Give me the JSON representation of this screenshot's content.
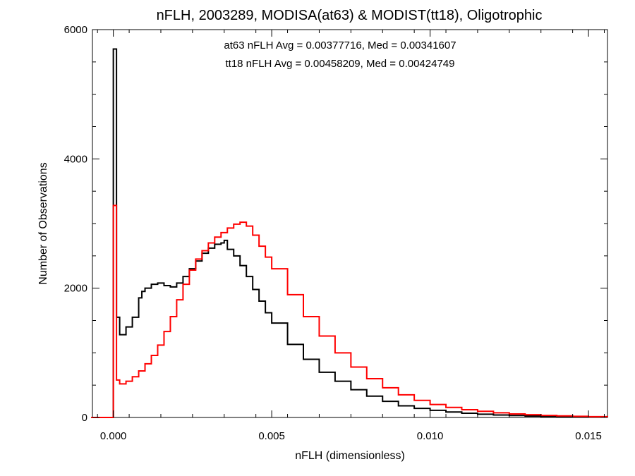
{
  "chart_data": {
    "type": "line",
    "title": "nFLH, 2003289, MODISA(at63) & MODIST(tt18), Oligotrophic",
    "xlabel": "nFLH (dimensionless)",
    "ylabel": "Number of Observations",
    "xlim": [
      -0.00066,
      0.0156
    ],
    "ylim": [
      0,
      6000
    ],
    "x_ticks": [
      0.0,
      0.005,
      0.01,
      0.015
    ],
    "x_tick_labels": [
      "0.000",
      "0.005",
      "0.010",
      "0.015"
    ],
    "y_ticks": [
      0,
      2000,
      4000,
      6000
    ],
    "y_tick_labels": [
      "0",
      "2000",
      "4000",
      "6000"
    ],
    "grid": false,
    "step": true,
    "annotations": [
      {
        "text": "at63 nFLH Avg = 0.00377716, Med = 0.00341607",
        "color": "#000000"
      },
      {
        "text": "tt18 nFLH Avg = 0.00458209, Med = 0.00424749",
        "color": "#ff0000"
      }
    ],
    "series": [
      {
        "color": "#000000",
        "x": [
          -0.0007,
          -5e-05,
          0,
          0.0001,
          0.0002,
          0.0004,
          0.0006,
          0.0008,
          0.0009,
          0.001,
          0.0012,
          0.0014,
          0.0016,
          0.0018,
          0.002,
          0.0022,
          0.0024,
          0.0026,
          0.0028,
          0.003,
          0.0032,
          0.0034,
          0.0035,
          0.0036,
          0.0038,
          0.004,
          0.0042,
          0.0044,
          0.0046,
          0.0048,
          0.005,
          0.0055,
          0.006,
          0.0065,
          0.007,
          0.0075,
          0.008,
          0.0085,
          0.009,
          0.0095,
          0.01,
          0.0105,
          0.011,
          0.0115,
          0.012,
          0.0125,
          0.013,
          0.0135,
          0.014,
          0.0145,
          0.015,
          0.0156
        ],
        "y": [
          0,
          0,
          5700,
          1550,
          1280,
          1400,
          1550,
          1850,
          1950,
          2000,
          2060,
          2080,
          2040,
          2020,
          2080,
          2180,
          2300,
          2420,
          2540,
          2620,
          2680,
          2700,
          2740,
          2600,
          2500,
          2350,
          2180,
          1980,
          1800,
          1620,
          1460,
          1130,
          900,
          700,
          560,
          430,
          330,
          250,
          180,
          140,
          110,
          85,
          65,
          50,
          38,
          30,
          22,
          18,
          14,
          10,
          8,
          5
        ]
      },
      {
        "color": "#ff0000",
        "x": [
          -0.0007,
          -5e-05,
          0,
          0.0001,
          0.0002,
          0.0004,
          0.0006,
          0.0008,
          0.001,
          0.0012,
          0.0014,
          0.0016,
          0.0018,
          0.002,
          0.0022,
          0.0024,
          0.0026,
          0.0028,
          0.003,
          0.0032,
          0.0034,
          0.0036,
          0.0038,
          0.004,
          0.0042,
          0.0044,
          0.0046,
          0.0048,
          0.005,
          0.0055,
          0.006,
          0.0065,
          0.007,
          0.0075,
          0.008,
          0.0085,
          0.009,
          0.0095,
          0.01,
          0.0105,
          0.011,
          0.0115,
          0.012,
          0.0125,
          0.013,
          0.0135,
          0.014,
          0.0145,
          0.015,
          0.0156
        ],
        "y": [
          0,
          0,
          3280,
          580,
          520,
          560,
          630,
          720,
          830,
          960,
          1120,
          1330,
          1560,
          1820,
          2060,
          2280,
          2450,
          2580,
          2700,
          2790,
          2860,
          2930,
          2990,
          3020,
          2960,
          2820,
          2650,
          2480,
          2300,
          1900,
          1560,
          1260,
          1000,
          780,
          600,
          460,
          350,
          265,
          200,
          155,
          120,
          95,
          72,
          55,
          42,
          32,
          25,
          18,
          12,
          6
        ]
      }
    ]
  }
}
